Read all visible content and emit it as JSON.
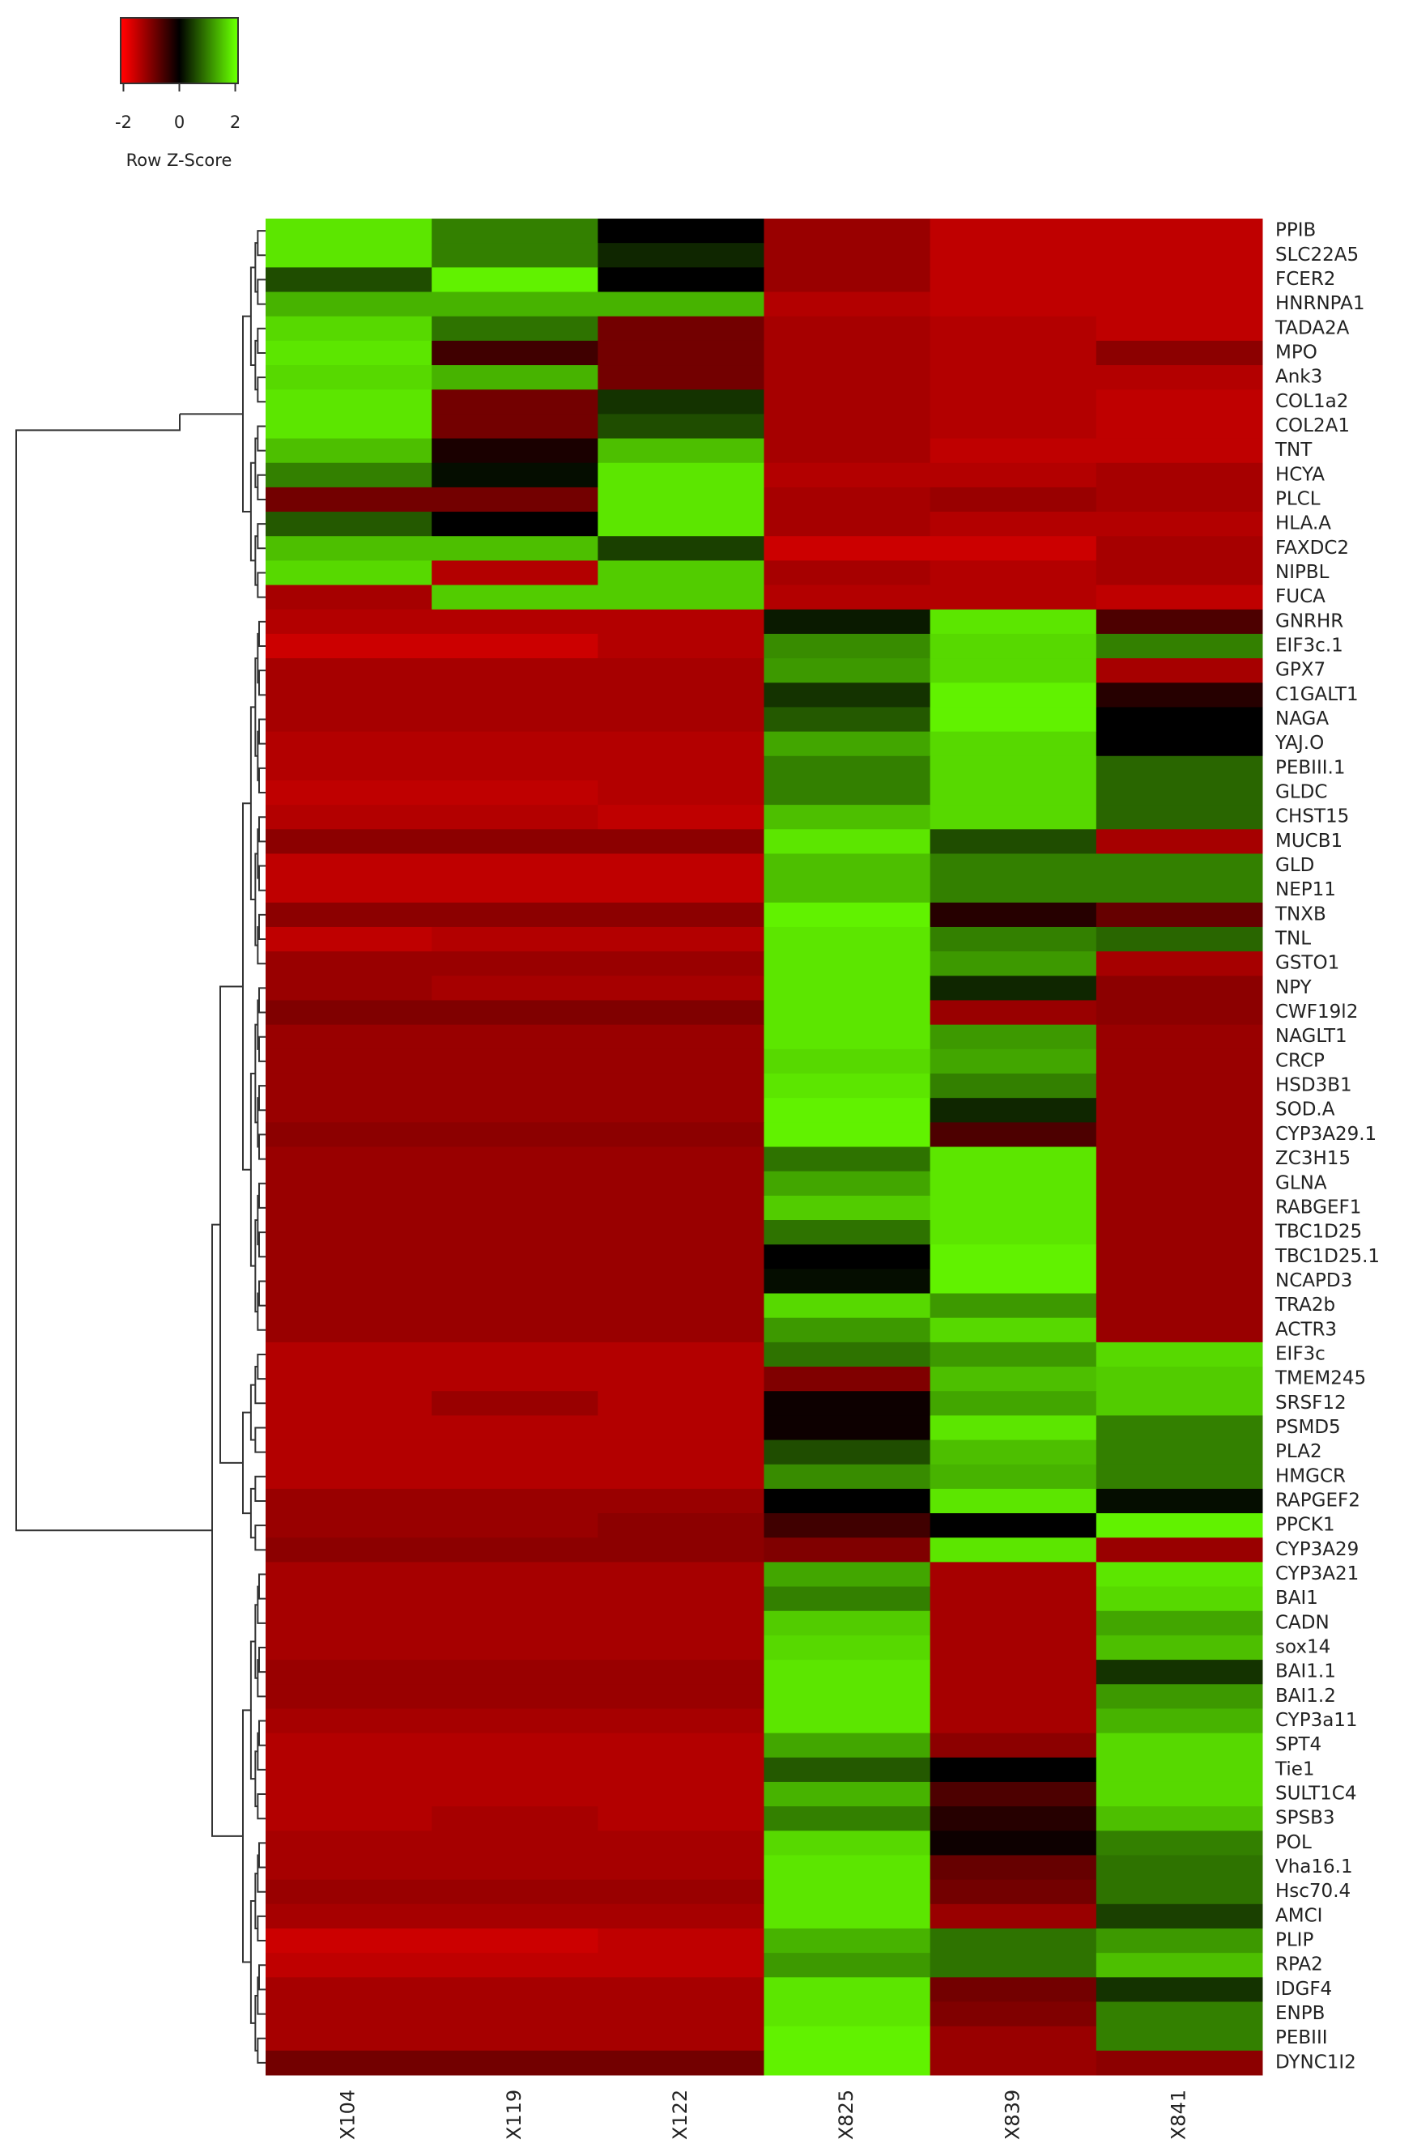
{
  "chart_data": {
    "type": "heatmap",
    "columns": [
      "X104",
      "X119",
      "X122",
      "X825",
      "X839",
      "X841"
    ],
    "rows": [
      "PPIB",
      "SLC22A5",
      "FCER2",
      "HNRNPA1",
      "TADA2A",
      "MPO",
      "Ank3",
      "COL1a2",
      "COL2A1",
      "TNT",
      "HCYA",
      "PLCL",
      "HLA.A",
      "FAXDC2",
      "NIPBL",
      "FUCA",
      "GNRHR",
      "EIF3c.1",
      "GPX7",
      "C1GALT1",
      "NAGA",
      "YAJ.O",
      "PEBIII.1",
      "GLDC",
      "CHST15",
      "MUCB1",
      "GLD",
      "NEP11",
      "TNXB",
      "TNL",
      "GSTO1",
      "NPY",
      "CWF19l2",
      "NAGLT1",
      "CRCP",
      "HSD3B1",
      "SOD.A",
      "CYP3A29.1",
      "ZC3H15",
      "GLNA",
      "RABGEF1",
      "TBC1D25",
      "TBC1D25.1",
      "NCAPD3",
      "TRA2b",
      "ACTR3",
      "EIF3c",
      "TMEM245",
      "SRSF12",
      "PSMD5",
      "PLA2",
      "HMGCR",
      "RAPGEF2",
      "PPCK1",
      "CYP3A29",
      "CYP3A21",
      "BAI1",
      "CADN",
      "sox14",
      "BAI1.1",
      "BAI1.2",
      "CYP3a11",
      "SPT4",
      "Tie1",
      "SULT1C4",
      "SPSB3",
      "POL",
      "Vha16.1",
      "Hsc70.4",
      "AMCI",
      "PLIP",
      "RPA2",
      "IDGF4",
      "ENPB",
      "PEBIII",
      "DYNC1I2"
    ],
    "values": [
      [
        1.8,
        1.0,
        0.0,
        -1.2,
        -1.5,
        -1.5
      ],
      [
        1.8,
        1.0,
        0.3,
        -1.2,
        -1.5,
        -1.5
      ],
      [
        0.6,
        1.9,
        0.0,
        -1.2,
        -1.5,
        -1.5
      ],
      [
        1.4,
        1.4,
        1.4,
        -1.4,
        -1.5,
        -1.5
      ],
      [
        1.7,
        0.9,
        -0.9,
        -1.3,
        -1.4,
        -1.5
      ],
      [
        1.8,
        -0.5,
        -0.9,
        -1.3,
        -1.4,
        -1.1
      ],
      [
        1.7,
        1.4,
        -0.9,
        -1.3,
        -1.4,
        -1.4
      ],
      [
        1.8,
        -0.9,
        0.4,
        -1.3,
        -1.4,
        -1.5
      ],
      [
        1.8,
        -0.9,
        0.6,
        -1.3,
        -1.4,
        -1.5
      ],
      [
        1.5,
        -0.2,
        1.5,
        -1.3,
        -1.5,
        -1.5
      ],
      [
        1.0,
        0.1,
        1.8,
        -1.4,
        -1.4,
        -1.3
      ],
      [
        -0.9,
        -0.9,
        1.8,
        -1.3,
        -1.2,
        -1.3
      ],
      [
        0.7,
        0.0,
        1.8,
        -1.3,
        -1.4,
        -1.4
      ],
      [
        1.5,
        1.5,
        0.5,
        -1.6,
        -1.6,
        -1.3
      ],
      [
        1.7,
        -1.4,
        1.6,
        -1.3,
        -1.4,
        -1.3
      ],
      [
        -1.3,
        1.6,
        1.6,
        -1.4,
        -1.4,
        -1.5
      ],
      [
        -1.4,
        -1.4,
        -1.4,
        0.2,
        1.8,
        -0.6
      ],
      [
        -1.6,
        -1.6,
        -1.4,
        1.1,
        1.7,
        1.0
      ],
      [
        -1.3,
        -1.3,
        -1.3,
        1.2,
        1.7,
        -1.3
      ],
      [
        -1.3,
        -1.3,
        -1.3,
        0.4,
        1.9,
        -0.3
      ],
      [
        -1.3,
        -1.3,
        -1.3,
        0.7,
        1.9,
        0.0
      ],
      [
        -1.4,
        -1.4,
        -1.4,
        1.3,
        1.7,
        0.0
      ],
      [
        -1.4,
        -1.4,
        -1.4,
        1.0,
        1.7,
        0.8
      ],
      [
        -1.5,
        -1.5,
        -1.4,
        1.0,
        1.7,
        0.8
      ],
      [
        -1.4,
        -1.4,
        -1.5,
        1.5,
        1.7,
        0.8
      ],
      [
        -1.1,
        -1.1,
        -1.1,
        1.8,
        0.6,
        -1.3
      ],
      [
        -1.5,
        -1.5,
        -1.5,
        1.5,
        1.0,
        1.0
      ],
      [
        -1.5,
        -1.5,
        -1.5,
        1.5,
        1.0,
        1.0
      ],
      [
        -1.1,
        -1.1,
        -1.1,
        1.9,
        -0.3,
        -0.8
      ],
      [
        -1.5,
        -1.4,
        -1.4,
        1.8,
        1.0,
        0.8
      ],
      [
        -1.2,
        -1.2,
        -1.2,
        1.8,
        1.2,
        -1.3
      ],
      [
        -1.2,
        -1.3,
        -1.3,
        1.8,
        0.3,
        -1.1
      ],
      [
        -1.0,
        -1.0,
        -1.0,
        1.8,
        -1.2,
        -1.1
      ],
      [
        -1.2,
        -1.2,
        -1.2,
        1.8,
        1.2,
        -1.2
      ],
      [
        -1.2,
        -1.2,
        -1.2,
        1.7,
        1.3,
        -1.2
      ],
      [
        -1.2,
        -1.2,
        -1.2,
        1.8,
        1.0,
        -1.2
      ],
      [
        -1.2,
        -1.2,
        -1.2,
        1.9,
        0.3,
        -1.2
      ],
      [
        -1.1,
        -1.1,
        -1.1,
        1.9,
        -0.6,
        -1.2
      ],
      [
        -1.2,
        -1.2,
        -1.2,
        0.9,
        1.8,
        -1.2
      ],
      [
        -1.2,
        -1.2,
        -1.2,
        1.3,
        1.8,
        -1.2
      ],
      [
        -1.2,
        -1.2,
        -1.2,
        1.6,
        1.8,
        -1.2
      ],
      [
        -1.2,
        -1.2,
        -1.2,
        0.9,
        1.8,
        -1.2
      ],
      [
        -1.2,
        -1.2,
        -1.2,
        0.0,
        1.9,
        -1.2
      ],
      [
        -1.2,
        -1.2,
        -1.2,
        0.1,
        1.9,
        -1.2
      ],
      [
        -1.2,
        -1.2,
        -1.2,
        1.7,
        1.2,
        -1.2
      ],
      [
        -1.2,
        -1.2,
        -1.2,
        1.2,
        1.7,
        -1.2
      ],
      [
        -1.4,
        -1.4,
        -1.4,
        0.9,
        1.2,
        1.7
      ],
      [
        -1.4,
        -1.4,
        -1.4,
        -1.0,
        1.5,
        1.6
      ],
      [
        -1.4,
        -1.2,
        -1.4,
        -0.1,
        1.3,
        1.6
      ],
      [
        -1.4,
        -1.4,
        -1.4,
        -0.1,
        1.8,
        1.0
      ],
      [
        -1.4,
        -1.4,
        -1.4,
        0.6,
        1.5,
        1.0
      ],
      [
        -1.4,
        -1.4,
        -1.4,
        1.1,
        1.4,
        1.0
      ],
      [
        -1.2,
        -1.2,
        -1.2,
        0.0,
        1.8,
        0.1
      ],
      [
        -1.2,
        -1.2,
        -1.1,
        -0.5,
        0.0,
        1.9
      ],
      [
        -1.1,
        -1.1,
        -1.1,
        -1.0,
        1.8,
        -1.2
      ],
      [
        -1.3,
        -1.3,
        -1.3,
        1.3,
        -1.3,
        1.8
      ],
      [
        -1.3,
        -1.3,
        -1.3,
        1.0,
        -1.3,
        1.7
      ],
      [
        -1.3,
        -1.3,
        -1.3,
        1.6,
        -1.3,
        1.3
      ],
      [
        -1.3,
        -1.3,
        -1.3,
        1.7,
        -1.3,
        1.5
      ],
      [
        -1.2,
        -1.2,
        -1.2,
        1.8,
        -1.3,
        0.4
      ],
      [
        -1.2,
        -1.2,
        -1.2,
        1.8,
        -1.3,
        1.2
      ],
      [
        -1.3,
        -1.3,
        -1.3,
        1.8,
        -1.3,
        1.4
      ],
      [
        -1.4,
        -1.4,
        -1.4,
        1.3,
        -1.1,
        1.7
      ],
      [
        -1.4,
        -1.4,
        -1.4,
        0.7,
        0.0,
        1.7
      ],
      [
        -1.4,
        -1.4,
        -1.4,
        1.4,
        -0.6,
        1.7
      ],
      [
        -1.4,
        -1.3,
        -1.4,
        1.0,
        -0.3,
        1.5
      ],
      [
        -1.3,
        -1.3,
        -1.3,
        1.7,
        -0.1,
        1.0
      ],
      [
        -1.3,
        -1.3,
        -1.3,
        1.8,
        -0.8,
        0.9
      ],
      [
        -1.2,
        -1.2,
        -1.2,
        1.8,
        -0.9,
        0.9
      ],
      [
        -1.3,
        -1.3,
        -1.3,
        1.8,
        -1.2,
        0.5
      ],
      [
        -1.6,
        -1.6,
        -1.5,
        1.4,
        0.9,
        1.2
      ],
      [
        -1.5,
        -1.5,
        -1.5,
        1.2,
        0.9,
        1.5
      ],
      [
        -1.3,
        -1.3,
        -1.3,
        1.8,
        -0.9,
        0.4
      ],
      [
        -1.3,
        -1.3,
        -1.3,
        1.8,
        -1.0,
        1.0
      ],
      [
        -1.3,
        -1.3,
        -1.3,
        1.9,
        -1.2,
        1.0
      ],
      [
        -0.9,
        -0.9,
        -0.9,
        1.9,
        -1.2,
        -1.1
      ]
    ],
    "low_color": "#ff0000",
    "mid_color": "#000000",
    "high_color": "#66ff00",
    "key_title": "Row Z-Score",
    "zlim": [
      -2.1,
      2.1
    ],
    "zticks": [
      -2,
      0,
      2
    ]
  }
}
